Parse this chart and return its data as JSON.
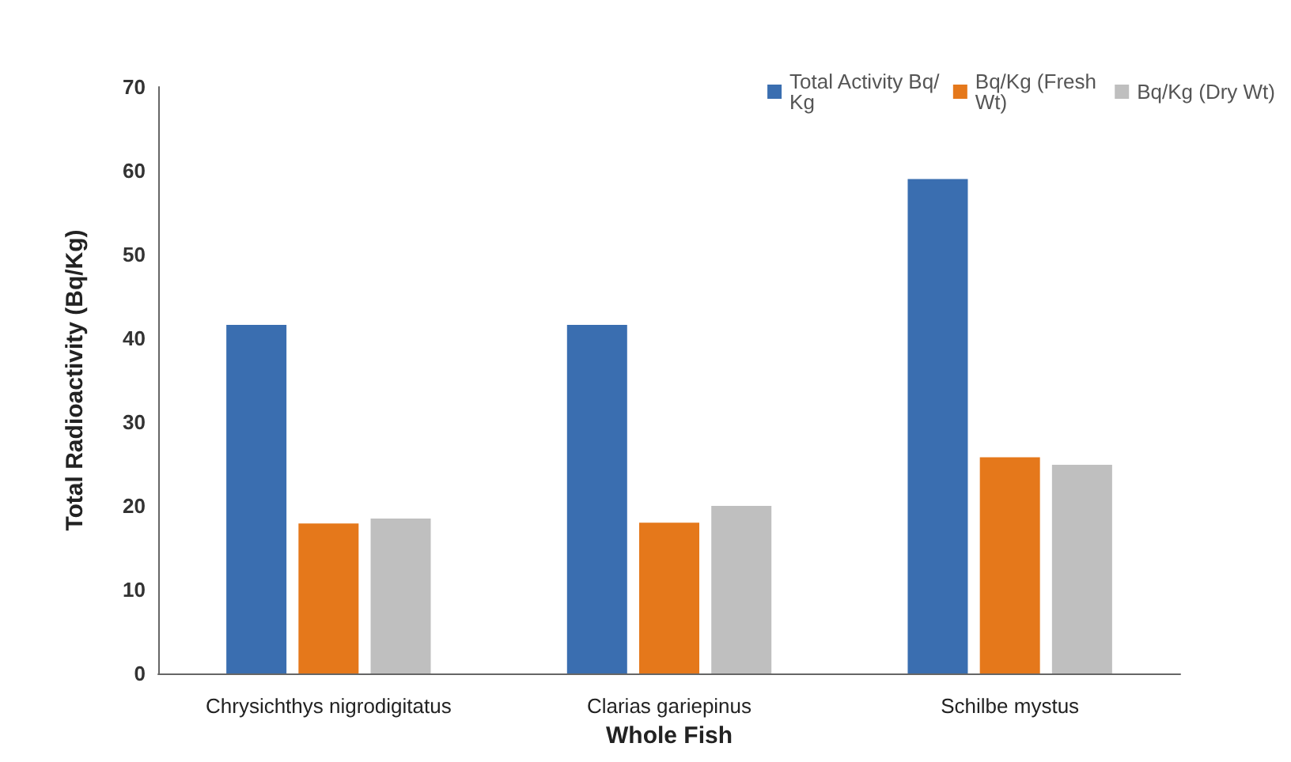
{
  "chart_data": {
    "type": "bar",
    "xlabel": "Whole Fish",
    "ylabel": "Total Radioactivity (Bq/Kg)",
    "categories": [
      "Chrysichthys nigrodigitatus",
      "Clarias gariepinus",
      "Schilbe mystus"
    ],
    "series": [
      {
        "name": "Total Activity Bq/Kg",
        "color": "#3a6eb0",
        "values": [
          41.6,
          41.6,
          59
        ]
      },
      {
        "name": "Bq/Kg (Fresh Wt)",
        "color": "#e5781b",
        "values": [
          17.9,
          18,
          25.8
        ]
      },
      {
        "name": "Bq/Kg (Dry Wt)",
        "color": "#bfbfbf",
        "values": [
          18.5,
          20,
          24.9
        ]
      }
    ],
    "ylim": [
      0,
      70
    ],
    "yticks": [
      0,
      10,
      20,
      30,
      40,
      50,
      60,
      70
    ],
    "grid": false,
    "legend": "top right"
  }
}
